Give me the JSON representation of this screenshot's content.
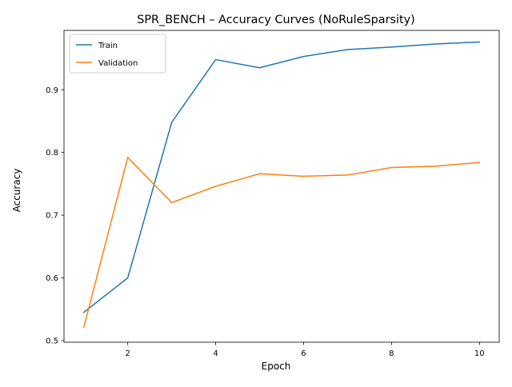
{
  "chart_data": {
    "type": "line",
    "title": "SPR_BENCH – Accuracy Curves (NoRuleSparsity)",
    "xlabel": "Epoch",
    "ylabel": "Accuracy",
    "x": [
      1,
      2,
      3,
      4,
      5,
      6,
      7,
      8,
      9,
      10
    ],
    "xlim": [
      0.55,
      10.45
    ],
    "ylim": [
      0.4974,
      0.9946
    ],
    "xticks": [
      2,
      4,
      6,
      8,
      10
    ],
    "yticks": [
      0.5,
      0.6,
      0.7,
      0.8,
      0.9
    ],
    "xtick_labels": [
      "2",
      "4",
      "6",
      "8",
      "10"
    ],
    "ytick_labels": [
      "0.5",
      "0.6",
      "0.7",
      "0.8",
      "0.9"
    ],
    "grid": false,
    "legend_position": "top-left",
    "series": [
      {
        "name": "Train",
        "color": "#1f77b4",
        "values": [
          0.545,
          0.6,
          0.848,
          0.948,
          0.935,
          0.953,
          0.964,
          0.968,
          0.973,
          0.976
        ]
      },
      {
        "name": "Validation",
        "color": "#ff7f0e",
        "values": [
          0.521,
          0.792,
          0.72,
          0.746,
          0.766,
          0.762,
          0.764,
          0.776,
          0.778,
          0.784
        ]
      }
    ]
  }
}
